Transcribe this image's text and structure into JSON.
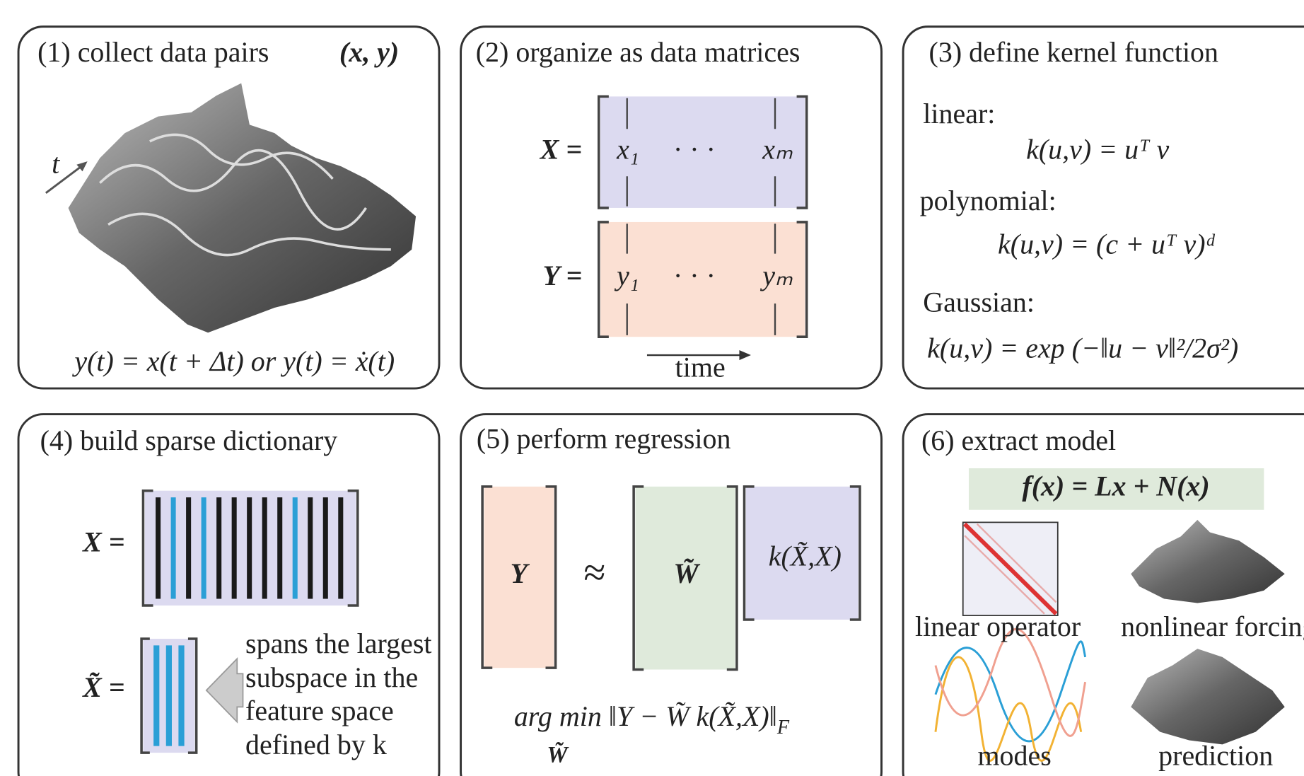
{
  "panels": [
    {
      "title": "(1) collect data pairs",
      "pair": "(x, y)",
      "time_symbol": "t",
      "equation": "y(t) = x(t + Δt) or y(t) = ẋ(t)"
    },
    {
      "title": "(2) organize as data matrices",
      "x_label": "X =",
      "x_first": "x₁",
      "x_dots": "· · ·",
      "x_last": "xₘ",
      "y_label": "Y =",
      "y_first": "y₁",
      "y_dots": "· · ·",
      "y_last": "yₘ",
      "axis": "time"
    },
    {
      "title": "(3) define kernel function",
      "kernels": [
        {
          "name": "linear:",
          "formula": "k(u,v) = uᵀ v"
        },
        {
          "name": "polynomial:",
          "formula": "k(u,v) = (c + uᵀ v)ᵈ"
        },
        {
          "name": "Gaussian:",
          "formula": "k(u,v) = exp (−‖u − v‖²/2σ²)"
        }
      ]
    },
    {
      "title": "(4) build sparse dictionary",
      "x_label": "X =",
      "xt_label": "X̃ =",
      "note": [
        "spans the largest",
        "subspace in the",
        "feature space",
        "defined by k"
      ]
    },
    {
      "title": "(5) perform regression",
      "y": "Y",
      "approx": "≈",
      "w": "W̃",
      "kernel": "k(X̃,X)",
      "objective": "arg min ‖Y − W̃  k(X̃,X)‖",
      "objective_sub": "F",
      "objective_under": "W̃"
    },
    {
      "title": "(6) extract model",
      "model": "f(x) = Lx + N(x)",
      "items": [
        "linear operator",
        "nonlinear forcing",
        "modes",
        "prediction"
      ]
    }
  ]
}
